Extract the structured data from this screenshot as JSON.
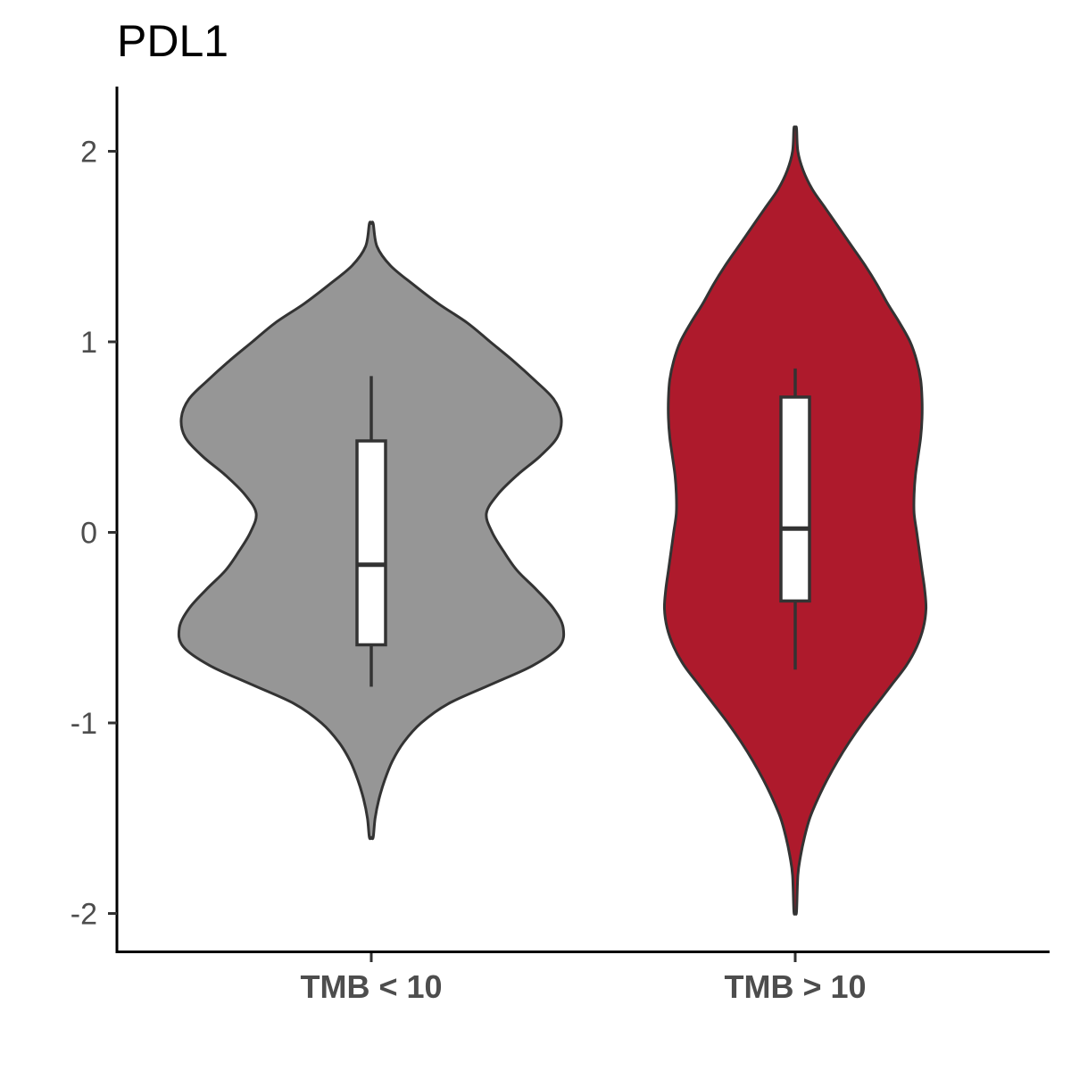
{
  "chart_data": {
    "type": "violin",
    "title": "PDL1",
    "xlabel": "",
    "ylabel": "",
    "ylim": [
      -2.2,
      2.35
    ],
    "y_ticks": [
      -2,
      -1,
      0,
      1,
      2
    ],
    "y_tick_labels": [
      "-2",
      "-1",
      "0",
      "1",
      "2"
    ],
    "grid": false,
    "legend": "none",
    "categories": [
      "TMB < 10",
      "TMB > 10"
    ],
    "series": [
      {
        "category": "TMB < 10",
        "color": "#969696",
        "min": -1.6,
        "max": 1.62,
        "box": {
          "whisker_low": -0.81,
          "q1": -0.59,
          "median": -0.17,
          "q3": 0.48,
          "whisker_high": 0.82
        },
        "density_profile": [
          [
            1.62,
            0.01
          ],
          [
            1.5,
            0.03
          ],
          [
            1.4,
            0.1
          ],
          [
            1.3,
            0.22
          ],
          [
            1.2,
            0.35
          ],
          [
            1.1,
            0.5
          ],
          [
            1.0,
            0.62
          ],
          [
            0.9,
            0.74
          ],
          [
            0.8,
            0.85
          ],
          [
            0.7,
            0.95
          ],
          [
            0.6,
            0.99
          ],
          [
            0.5,
            0.97
          ],
          [
            0.4,
            0.88
          ],
          [
            0.3,
            0.76
          ],
          [
            0.2,
            0.66
          ],
          [
            0.1,
            0.6
          ],
          [
            0.0,
            0.63
          ],
          [
            -0.1,
            0.69
          ],
          [
            -0.2,
            0.76
          ],
          [
            -0.3,
            0.86
          ],
          [
            -0.4,
            0.95
          ],
          [
            -0.5,
            1.0
          ],
          [
            -0.6,
            0.98
          ],
          [
            -0.7,
            0.84
          ],
          [
            -0.8,
            0.62
          ],
          [
            -0.9,
            0.4
          ],
          [
            -1.0,
            0.26
          ],
          [
            -1.1,
            0.17
          ],
          [
            -1.2,
            0.11
          ],
          [
            -1.3,
            0.07
          ],
          [
            -1.4,
            0.04
          ],
          [
            -1.5,
            0.02
          ],
          [
            -1.6,
            0.01
          ]
        ]
      },
      {
        "category": "TMB > 10",
        "color": "#AE1A2C",
        "min": -1.99,
        "max": 2.12,
        "box": {
          "whisker_low": -0.72,
          "q1": -0.36,
          "median": 0.02,
          "q3": 0.71,
          "whisker_high": 0.86
        },
        "density_profile": [
          [
            2.12,
            0.01
          ],
          [
            2.0,
            0.02
          ],
          [
            1.9,
            0.06
          ],
          [
            1.8,
            0.13
          ],
          [
            1.7,
            0.23
          ],
          [
            1.6,
            0.33
          ],
          [
            1.5,
            0.43
          ],
          [
            1.4,
            0.53
          ],
          [
            1.3,
            0.62
          ],
          [
            1.2,
            0.7
          ],
          [
            1.1,
            0.79
          ],
          [
            1.0,
            0.87
          ],
          [
            0.9,
            0.92
          ],
          [
            0.8,
            0.95
          ],
          [
            0.7,
            0.96
          ],
          [
            0.6,
            0.96
          ],
          [
            0.5,
            0.95
          ],
          [
            0.4,
            0.93
          ],
          [
            0.3,
            0.91
          ],
          [
            0.2,
            0.9
          ],
          [
            0.1,
            0.9
          ],
          [
            0.0,
            0.92
          ],
          [
            -0.1,
            0.94
          ],
          [
            -0.2,
            0.96
          ],
          [
            -0.3,
            0.98
          ],
          [
            -0.4,
            0.99
          ],
          [
            -0.5,
            0.97
          ],
          [
            -0.6,
            0.92
          ],
          [
            -0.7,
            0.84
          ],
          [
            -0.8,
            0.73
          ],
          [
            -0.9,
            0.62
          ],
          [
            -1.0,
            0.51
          ],
          [
            -1.1,
            0.41
          ],
          [
            -1.2,
            0.32
          ],
          [
            -1.3,
            0.24
          ],
          [
            -1.4,
            0.17
          ],
          [
            -1.5,
            0.11
          ],
          [
            -1.6,
            0.07
          ],
          [
            -1.7,
            0.04
          ],
          [
            -1.8,
            0.02
          ],
          [
            -1.99,
            0.01
          ]
        ]
      }
    ]
  }
}
